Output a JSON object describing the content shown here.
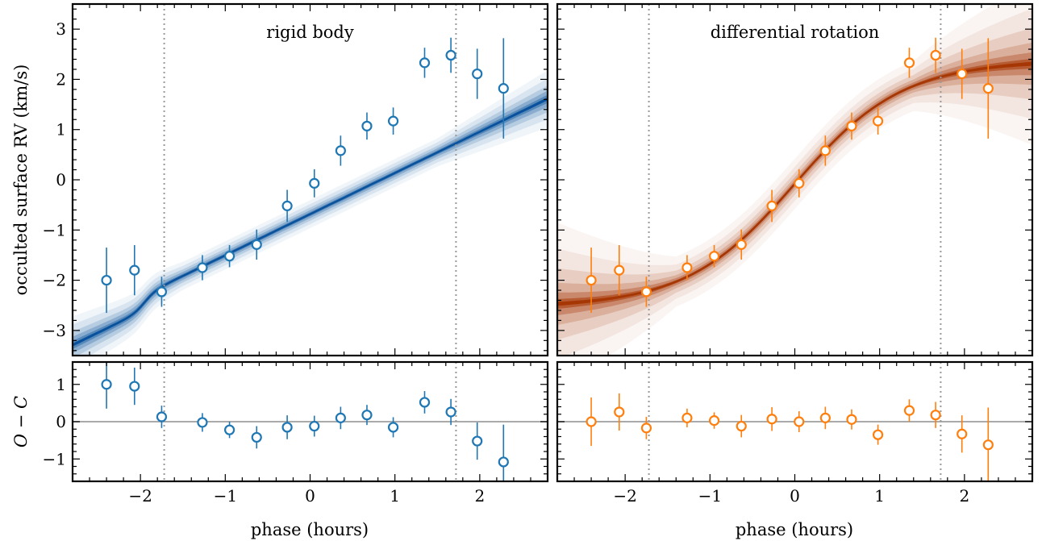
{
  "chart_data": {
    "type": "scatter",
    "x_axis": {
      "label": "phase (hours)",
      "range": [
        -2.8,
        2.8
      ],
      "ticks": [
        -2,
        -1,
        0,
        1,
        2
      ],
      "tick_labels": [
        "−2",
        "−1",
        "0",
        "1",
        "2"
      ],
      "transit_markers": [
        -1.72,
        1.72
      ]
    },
    "panels": [
      {
        "title": "rigid body",
        "y_label": "occulted surface RV (km/s)",
        "y_range": [
          -3.5,
          3.5
        ],
        "y_ticks": [
          -3,
          -2,
          -1,
          0,
          1,
          2,
          3
        ],
        "y_tick_labels": [
          "−3",
          "−2",
          "−1",
          "0",
          "1",
          "2",
          "3"
        ],
        "color": "#1f77b4",
        "band_color": "#08519c",
        "model": "rigid",
        "series": [
          {
            "x": [
              -2.4,
              -2.07,
              -1.75,
              -1.27,
              -0.95,
              -0.63,
              -0.27,
              0.05,
              0.36,
              0.67,
              0.98,
              1.35,
              1.66,
              1.97,
              2.28
            ],
            "y": [
              -2.0,
              -1.8,
              -2.23,
              -1.75,
              -1.52,
              -1.29,
              -0.52,
              -0.07,
              0.58,
              1.07,
              1.17,
              2.33,
              2.48,
              2.11,
              1.82
            ],
            "err": [
              0.65,
              0.5,
              0.3,
              0.25,
              0.22,
              0.3,
              0.32,
              0.28,
              0.3,
              0.27,
              0.27,
              0.3,
              0.35,
              0.5,
              1.0
            ]
          }
        ]
      },
      {
        "title": "differential rotation",
        "y_label": "",
        "y_range": [
          -3.5,
          3.5
        ],
        "y_ticks": [
          -3,
          -2,
          -1,
          0,
          1,
          2,
          3
        ],
        "y_tick_labels": [],
        "color": "#ff7f0e",
        "band_color": "#a63603",
        "model": "differential",
        "series": [
          {
            "x": [
              -2.4,
              -2.07,
              -1.75,
              -1.27,
              -0.95,
              -0.63,
              -0.27,
              0.05,
              0.36,
              0.67,
              0.98,
              1.35,
              1.66,
              1.97,
              2.28
            ],
            "y": [
              -2.0,
              -1.8,
              -2.23,
              -1.75,
              -1.52,
              -1.29,
              -0.52,
              -0.07,
              0.58,
              1.07,
              1.17,
              2.33,
              2.48,
              2.11,
              1.82
            ],
            "err": [
              0.65,
              0.5,
              0.3,
              0.25,
              0.22,
              0.3,
              0.32,
              0.28,
              0.3,
              0.27,
              0.27,
              0.3,
              0.35,
              0.5,
              1.0
            ]
          }
        ]
      },
      {
        "title": "",
        "y_label": "O − C",
        "y_range": [
          -1.6,
          1.6
        ],
        "y_ticks": [
          -1,
          0,
          1
        ],
        "y_tick_labels": [
          "−1",
          "0",
          "1"
        ],
        "color": "#1f77b4",
        "zero_line_color": "#aaaaaa",
        "series": [
          {
            "x": [
              -2.4,
              -2.07,
              -1.75,
              -1.27,
              -0.95,
              -0.63,
              -0.27,
              0.05,
              0.36,
              0.67,
              0.98,
              1.35,
              1.66,
              1.97,
              2.28
            ],
            "y": [
              1.0,
              0.95,
              0.13,
              -0.02,
              -0.22,
              -0.42,
              -0.15,
              -0.12,
              0.1,
              0.18,
              -0.15,
              0.52,
              0.26,
              -0.52,
              -1.08
            ],
            "err": [
              0.65,
              0.5,
              0.3,
              0.25,
              0.22,
              0.3,
              0.32,
              0.28,
              0.3,
              0.27,
              0.27,
              0.3,
              0.35,
              0.5,
              1.0
            ]
          }
        ]
      },
      {
        "title": "",
        "y_label": "",
        "y_range": [
          -1.6,
          1.6
        ],
        "y_ticks": [
          -1,
          0,
          1
        ],
        "y_tick_labels": [],
        "color": "#ff7f0e",
        "zero_line_color": "#aaaaaa",
        "series": [
          {
            "x": [
              -2.4,
              -2.07,
              -1.75,
              -1.27,
              -0.95,
              -0.63,
              -0.27,
              0.05,
              0.36,
              0.67,
              0.98,
              1.35,
              1.66,
              1.97,
              2.28
            ],
            "y": [
              0.0,
              0.26,
              -0.17,
              0.1,
              0.03,
              -0.12,
              0.07,
              0.0,
              0.1,
              0.06,
              -0.35,
              0.3,
              0.18,
              -0.33,
              -0.62
            ],
            "err": [
              0.65,
              0.5,
              0.3,
              0.25,
              0.22,
              0.3,
              0.32,
              0.28,
              0.3,
              0.27,
              0.27,
              0.3,
              0.35,
              0.5,
              1.0
            ]
          }
        ]
      }
    ],
    "grid": false,
    "legend": "none"
  }
}
